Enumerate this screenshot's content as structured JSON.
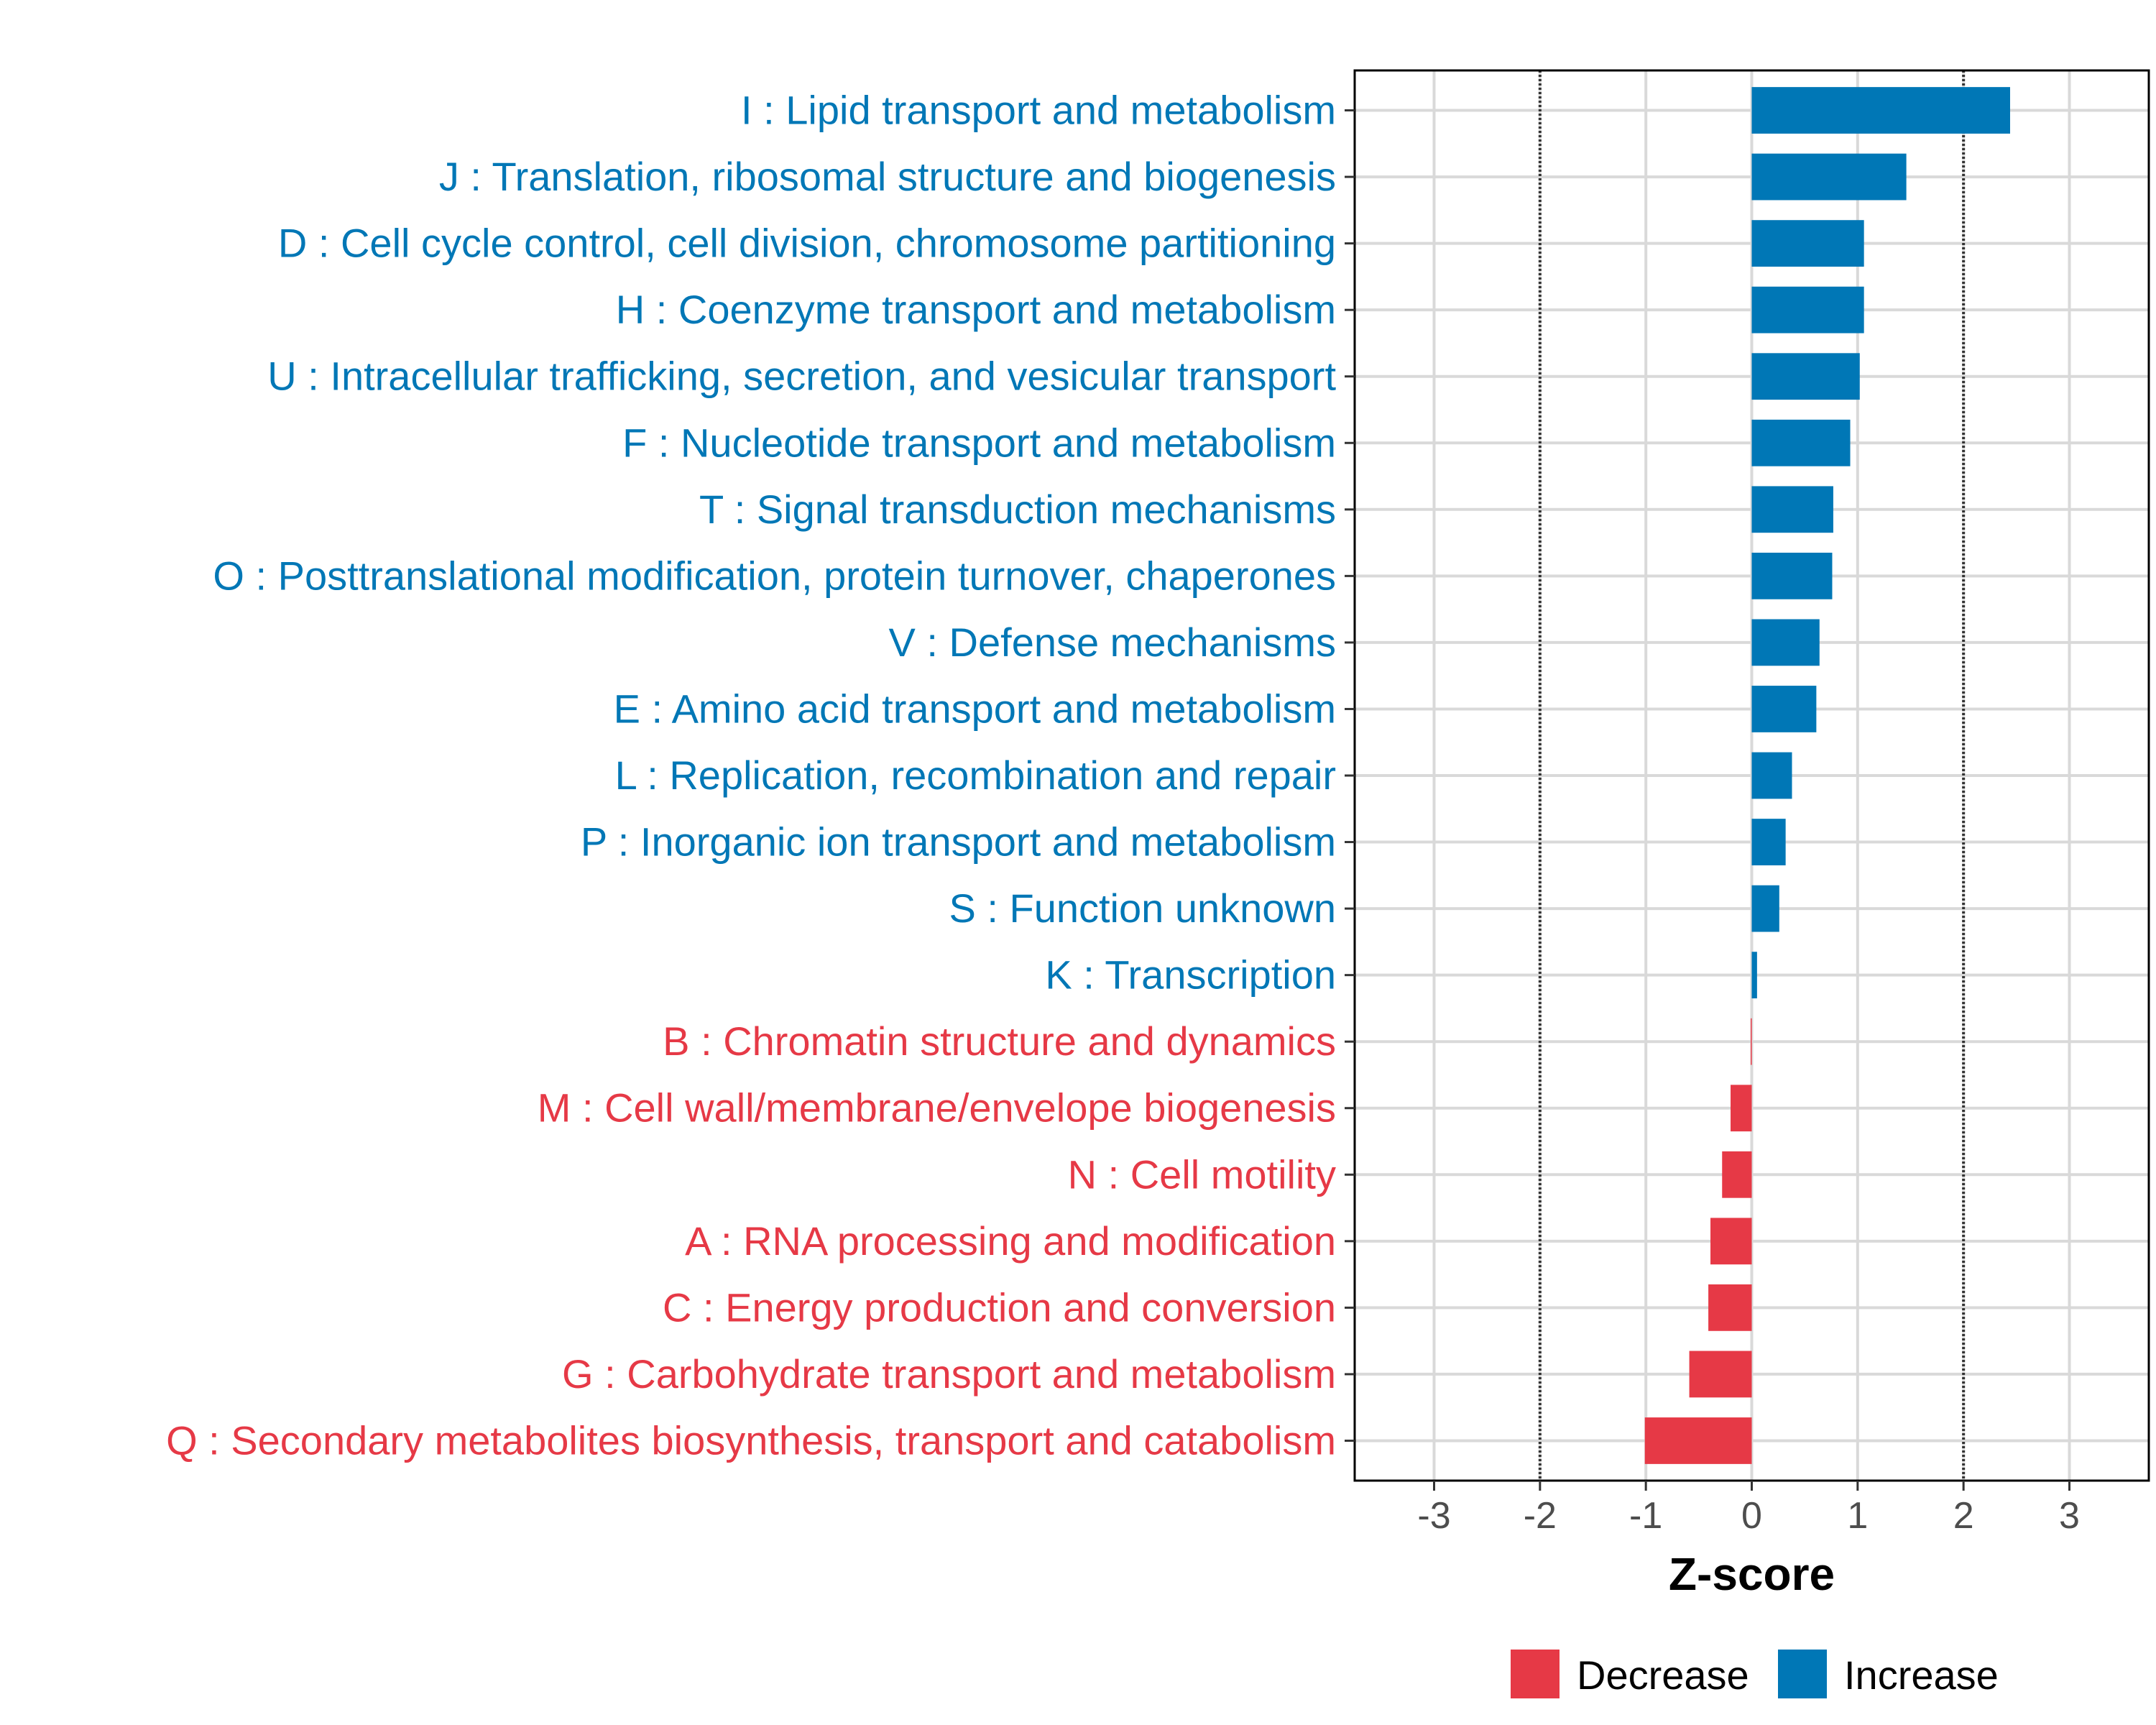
{
  "chart_data": {
    "type": "bar",
    "orientation": "horizontal",
    "xlabel": "Z-score",
    "xlim": [
      -3.75,
      3.75
    ],
    "xticks": [
      -3,
      -2,
      -1,
      0,
      1,
      2,
      3
    ],
    "xtick_labels": [
      "-3",
      "-2",
      "-1",
      "0",
      "1",
      "2",
      "3"
    ],
    "reference_lines": [
      -2,
      2
    ],
    "grid": true,
    "legend_position": "bottom",
    "colors": {
      "Decrease": "#E63946",
      "Increase": "#0077B6",
      "reference_line": "#333333",
      "grid": "#d9d9d9"
    },
    "legend": [
      {
        "label": "Decrease",
        "color": "#E63946"
      },
      {
        "label": "Increase",
        "color": "#0077B6"
      }
    ],
    "categories": [
      "I : Lipid transport and metabolism",
      "J : Translation, ribosomal structure and biogenesis",
      "D : Cell cycle control, cell division, chromosome partitioning",
      "H : Coenzyme transport and metabolism",
      "U : Intracellular trafficking, secretion, and vesicular transport",
      "F : Nucleotide transport and metabolism",
      "T : Signal transduction mechanisms",
      "O : Posttranslational modification, protein turnover, chaperones",
      "V : Defense mechanisms",
      "E : Amino acid transport and metabolism",
      "L : Replication, recombination and repair",
      "P : Inorganic ion transport and metabolism",
      "S : Function unknown",
      "K : Transcription",
      "B : Chromatin structure and dynamics",
      "M : Cell wall/membrane/envelope biogenesis",
      "N : Cell motility",
      "A : RNA processing and modification",
      "C : Energy production and conversion",
      "G : Carbohydrate transport and metabolism",
      "Q : Secondary metabolites biosynthesis, transport and catabolism"
    ],
    "values": [
      2.44,
      1.46,
      1.06,
      1.06,
      1.02,
      0.93,
      0.77,
      0.76,
      0.64,
      0.61,
      0.38,
      0.32,
      0.26,
      0.05,
      -0.01,
      -0.2,
      -0.28,
      -0.39,
      -0.41,
      -0.59,
      -1.01
    ],
    "groups": [
      "Increase",
      "Increase",
      "Increase",
      "Increase",
      "Increase",
      "Increase",
      "Increase",
      "Increase",
      "Increase",
      "Increase",
      "Increase",
      "Increase",
      "Increase",
      "Increase",
      "Decrease",
      "Decrease",
      "Decrease",
      "Decrease",
      "Decrease",
      "Decrease",
      "Decrease"
    ]
  }
}
